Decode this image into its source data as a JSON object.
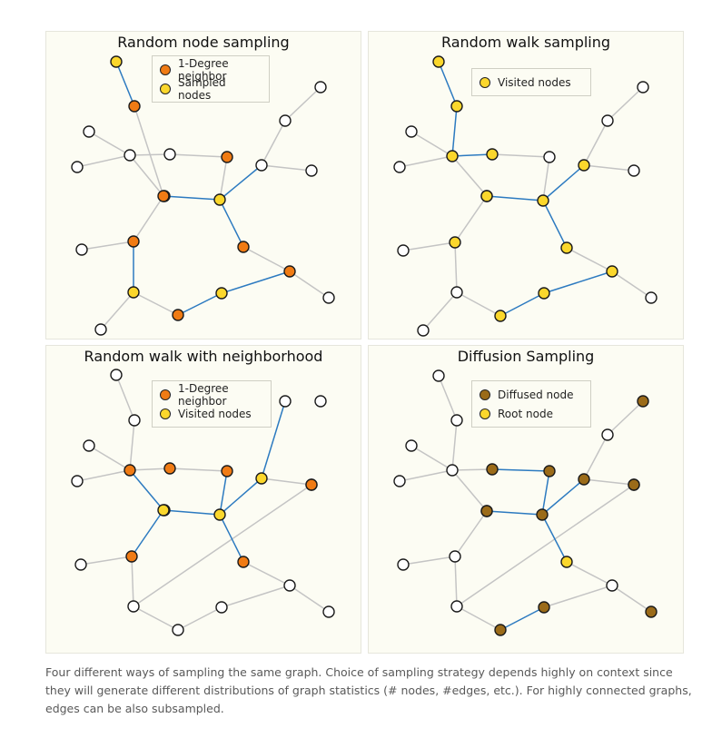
{
  "colors": {
    "orange": "#f07b14",
    "yellow": "#fbd72c",
    "brown": "#9b6b19",
    "white": "#ffffff",
    "blue_edge": "#2c7ac0",
    "gray_edge": "#c4c4c4"
  },
  "panels": [
    {
      "title": "Random node sampling",
      "legend": [
        {
          "label": "1-Degree neighbor",
          "color": "#f07b14"
        },
        {
          "label": "Sampled nodes",
          "color": "#fbd72c"
        }
      ],
      "node_states": [
        "y",
        "o",
        "w",
        "w",
        "w",
        "w",
        "o",
        "o",
        "o",
        "y",
        "w",
        "w",
        "o",
        "w",
        "w",
        "w",
        "o",
        "y",
        "o",
        "y",
        "o",
        "w",
        "w"
      ],
      "blue_edges": [
        [
          0,
          1
        ],
        [
          6,
          8
        ],
        [
          7,
          8
        ],
        [
          8,
          9
        ],
        [
          9,
          10
        ],
        [
          9,
          12
        ],
        [
          12,
          18
        ],
        [
          18,
          19
        ],
        [
          19,
          20
        ],
        [
          20,
          16
        ],
        [
          16,
          17
        ]
      ]
    },
    {
      "title": "Random walk sampling",
      "legend": [
        {
          "label": "Visited nodes",
          "color": "#fbd72c"
        }
      ],
      "node_states": [
        "y",
        "y",
        "w",
        "w",
        "y",
        "y",
        "y",
        "w",
        "y",
        "y",
        "y",
        "w",
        "y",
        "w",
        "w",
        "w",
        "y",
        "w",
        "y",
        "y",
        "y",
        "w",
        "w"
      ],
      "blue_edges": [
        [
          0,
          1
        ],
        [
          1,
          4
        ],
        [
          4,
          5
        ],
        [
          4,
          6
        ],
        [
          6,
          8
        ],
        [
          8,
          9
        ],
        [
          9,
          10
        ],
        [
          9,
          12
        ],
        [
          12,
          18
        ],
        [
          18,
          19
        ],
        [
          19,
          20
        ],
        [
          20,
          16
        ]
      ]
    },
    {
      "title": "Random walk with neighborhood",
      "legend": [
        {
          "label": "1-Degree neighbor",
          "color": "#f07b14"
        },
        {
          "label": "Visited nodes",
          "color": "#fbd72c"
        }
      ],
      "node_states": [
        "w",
        "w",
        "w",
        "w",
        "o",
        "o",
        "o",
        "o",
        "y",
        "y",
        "y",
        "w",
        "o",
        "w",
        "w",
        "w",
        "o",
        "w",
        "w",
        "w",
        "w",
        "w",
        "o"
      ],
      "blue_edges": [
        [
          4,
          8
        ],
        [
          5,
          8
        ],
        [
          8,
          9
        ],
        [
          7,
          9
        ],
        [
          9,
          10
        ],
        [
          10,
          22
        ],
        [
          10,
          11
        ],
        [
          9,
          12
        ],
        [
          8,
          16
        ]
      ]
    },
    {
      "title": "Diffusion Sampling",
      "legend": [
        {
          "label": "Diffused node",
          "color": "#9b6b19"
        },
        {
          "label": "Root node",
          "color": "#fbd72c"
        }
      ],
      "node_states": [
        "w",
        "w",
        "w",
        "w",
        "w",
        "b",
        "b",
        "b",
        "b",
        "b",
        "b",
        "w",
        "y",
        "b",
        "w",
        "w",
        "w",
        "w",
        "b",
        "b",
        "w",
        "b",
        "b"
      ],
      "blue_edges": [
        [
          5,
          7
        ],
        [
          5,
          8
        ],
        [
          7,
          9
        ],
        [
          8,
          9
        ],
        [
          9,
          10
        ],
        [
          10,
          22
        ],
        [
          9,
          12
        ],
        [
          12,
          13
        ],
        [
          13,
          21
        ],
        [
          12,
          18
        ],
        [
          18,
          19
        ]
      ]
    }
  ],
  "caption": "Four different ways of sampling the same graph. Choice of sampling strategy depends highly on context since they will generate different distributions of graph statistics (# nodes, #edges, etc.). For highly connected graphs, edges can be also subsampled."
}
